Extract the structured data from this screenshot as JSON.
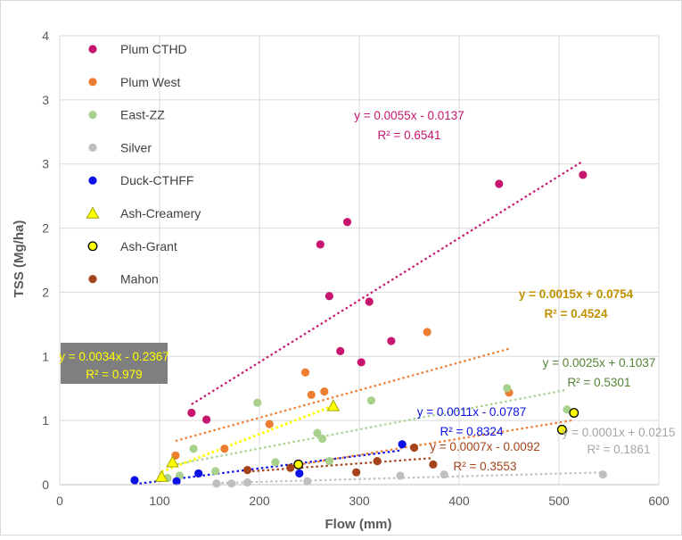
{
  "chart_data": {
    "type": "scatter",
    "xlabel": "Flow (mm)",
    "ylabel": "TSS (Mg/ha)",
    "xlim": [
      0,
      600
    ],
    "ylim": [
      0,
      4
    ],
    "x_ticks": [
      "0",
      "100",
      "200",
      "300",
      "400",
      "500",
      "600"
    ],
    "y_ticks": [
      "0",
      "1",
      "1",
      "2",
      "2",
      "3",
      "3",
      "4"
    ],
    "grid": true,
    "legend_position": "top-left",
    "series": [
      {
        "name": "Plum CTHD",
        "marker": "circle",
        "color": "#C7166E",
        "points": [
          [
            132,
            0.64
          ],
          [
            147,
            0.58
          ],
          [
            261,
            2.14
          ],
          [
            270,
            1.68
          ],
          [
            281,
            1.19
          ],
          [
            288,
            2.34
          ],
          [
            302,
            1.09
          ],
          [
            310,
            1.63
          ],
          [
            332,
            1.28
          ],
          [
            440,
            2.68
          ],
          [
            524,
            2.76
          ]
        ],
        "trendline": {
          "x": [
            132,
            524
          ],
          "equation": "y = 0.0055x - 0.0137",
          "r2": "R² = 0.6541",
          "eq_color": "#C7166E"
        }
      },
      {
        "name": "Plum West",
        "marker": "circle",
        "color": "#ED7D31",
        "points": [
          [
            116,
            0.26
          ],
          [
            165,
            0.32
          ],
          [
            210,
            0.54
          ],
          [
            246,
            1.0
          ],
          [
            252,
            0.8
          ],
          [
            265,
            0.83
          ],
          [
            368,
            1.36
          ],
          [
            450,
            0.82
          ]
        ],
        "trendline": {
          "x": [
            116,
            450
          ],
          "equation": "",
          "r2": "",
          "eq_color": "#ED7D31"
        }
      },
      {
        "name": "East-ZZ",
        "marker": "circle",
        "color": "#A9D18E",
        "points": [
          [
            108,
            0.06
          ],
          [
            120,
            0.08
          ],
          [
            134,
            0.32
          ],
          [
            156,
            0.12
          ],
          [
            198,
            0.73
          ],
          [
            216,
            0.2
          ],
          [
            258,
            0.46
          ],
          [
            263,
            0.41
          ],
          [
            270,
            0.21
          ],
          [
            312,
            0.75
          ],
          [
            448,
            0.86
          ],
          [
            508,
            0.67
          ]
        ],
        "trendline": {
          "x": [
            108,
            508
          ],
          "equation": "y = 0.0025x + 0.1037",
          "r2": "R² = 0.5301",
          "eq_color": "#548235"
        }
      },
      {
        "name": "Silver",
        "marker": "circle",
        "color": "#BFBFBF",
        "points": [
          [
            157,
            0.01
          ],
          [
            172,
            0.01
          ],
          [
            188,
            0.02
          ],
          [
            248,
            0.03
          ],
          [
            341,
            0.08
          ],
          [
            385,
            0.09
          ],
          [
            544,
            0.09
          ]
        ],
        "trendline": {
          "x": [
            157,
            544
          ],
          "equation": "y = 0.0001x + 0.0215",
          "r2": "R² = 0.1861",
          "eq_color": "#A6A6A6"
        }
      },
      {
        "name": "Duck-CTHFF",
        "marker": "circle",
        "color": "#0B10E6",
        "points": [
          [
            75,
            0.04
          ],
          [
            117,
            0.03
          ],
          [
            139,
            0.1
          ],
          [
            240,
            0.1
          ],
          [
            343,
            0.36
          ]
        ],
        "trendline": {
          "x": [
            75,
            343
          ],
          "equation": "y = 0.0011x - 0.0787",
          "r2": "R² = 0.8324",
          "eq_color": "#0B10E6"
        }
      },
      {
        "name": "Ash-Creamery",
        "marker": "triangle",
        "color": "#FFFF00",
        "points": [
          [
            102,
            0.07
          ],
          [
            113,
            0.2
          ],
          [
            274,
            0.7
          ]
        ],
        "trendline": {
          "x": [
            102,
            274
          ],
          "equation": "y = 0.0034x - 0.2367",
          "r2": "R² = 0.979",
          "eq_color": "#FFFF00"
        }
      },
      {
        "name": "Ash-Grant",
        "marker": "ring",
        "color": "#FFFF00",
        "points": [
          [
            239,
            0.18
          ],
          [
            503,
            0.49
          ],
          [
            515,
            0.64
          ]
        ],
        "trendline": {
          "x": [
            239,
            515
          ],
          "equation": "y = 0.0015x + 0.0754",
          "r2": "R² = 0.4524",
          "eq_color": "#BF9000"
        }
      },
      {
        "name": "Mahon",
        "marker": "circle",
        "color": "#A5441B",
        "points": [
          [
            188,
            0.13
          ],
          [
            231,
            0.15
          ],
          [
            297,
            0.11
          ],
          [
            318,
            0.21
          ],
          [
            355,
            0.33
          ],
          [
            374,
            0.18
          ]
        ],
        "trendline": {
          "x": [
            188,
            374
          ],
          "equation": "y = 0.0007x - 0.0092",
          "r2": "R² = 0.3553",
          "eq_color": "#A5441B"
        }
      }
    ]
  }
}
